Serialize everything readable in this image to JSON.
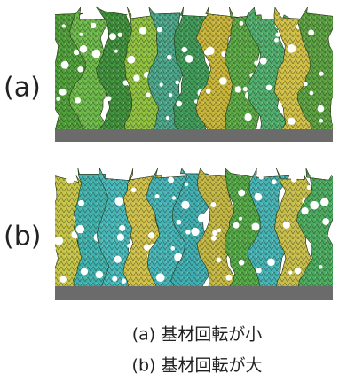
{
  "figure": {
    "panels": [
      {
        "label": "(a)"
      },
      {
        "label": "(b)"
      }
    ],
    "captions": [
      "(a) 基材回転が小",
      "(b) 基材回転が大"
    ]
  }
}
